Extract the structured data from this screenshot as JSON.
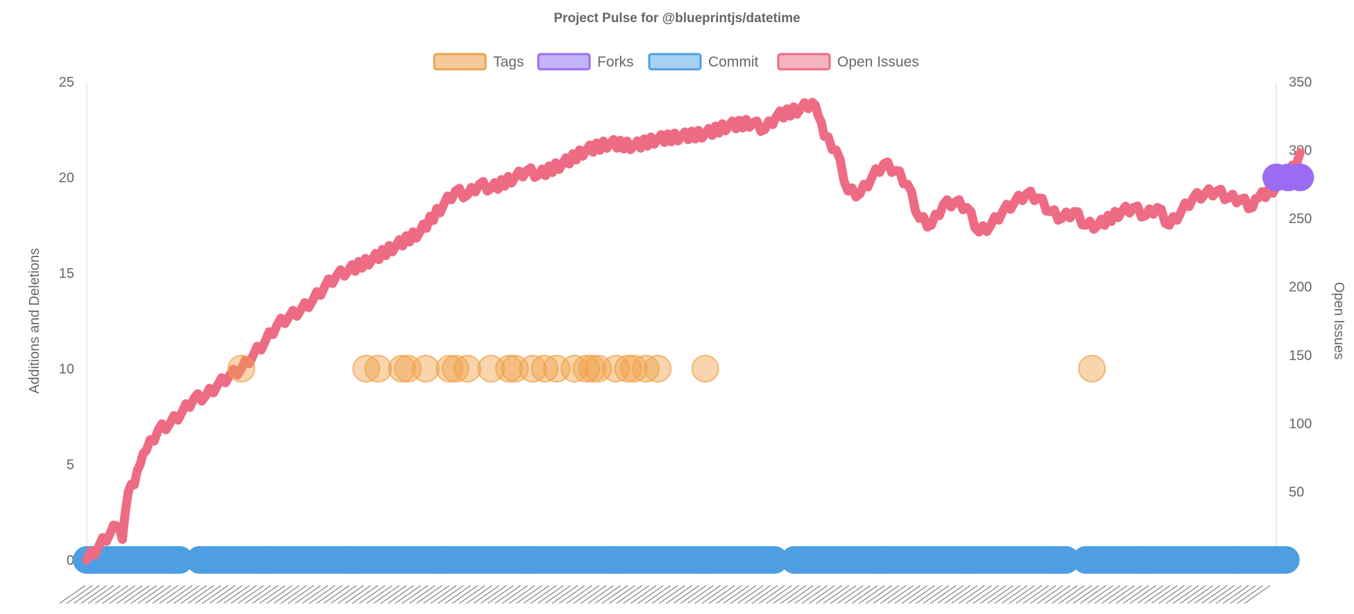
{
  "chart_data": {
    "type": "line",
    "title": "Project Pulse for @blueprintjs/datetime",
    "legend": {
      "position": "top",
      "items": [
        {
          "name": "Tags",
          "fill": "#f6c99b",
          "stroke": "#f0a24a"
        },
        {
          "name": "Forks",
          "fill": "#c3b3f7",
          "stroke": "#9b6cf3"
        },
        {
          "name": "Commit",
          "fill": "#a7d2f3",
          "stroke": "#4f9ee3"
        },
        {
          "name": "Open Issues",
          "fill": "#f4b4c1",
          "stroke": "#ee6b84"
        }
      ]
    },
    "y_left": {
      "label": "Additions and Deletions",
      "min": 0,
      "max": 25,
      "ticks": [
        0,
        5,
        10,
        15,
        20,
        25
      ]
    },
    "y_right": {
      "label": "Open Issues",
      "min": 0,
      "max": 350,
      "ticks": [
        0,
        50,
        100,
        150,
        200,
        250,
        300,
        350
      ]
    },
    "grid": "vertical axis lines only",
    "x": {
      "label": "",
      "index_min": 0,
      "index_max": 1000,
      "tick_labels_legible": false
    },
    "series": [
      {
        "name": "Open Issues",
        "axis": "right",
        "color": "#ee6b84",
        "points": [
          [
            0,
            0
          ],
          [
            10,
            10
          ],
          [
            20,
            20
          ],
          [
            25,
            25
          ],
          [
            30,
            15
          ],
          [
            35,
            50
          ],
          [
            40,
            55
          ],
          [
            45,
            70
          ],
          [
            50,
            80
          ],
          [
            60,
            95
          ],
          [
            70,
            100
          ],
          [
            80,
            108
          ],
          [
            90,
            118
          ],
          [
            100,
            120
          ],
          [
            110,
            128
          ],
          [
            120,
            135
          ],
          [
            130,
            140
          ],
          [
            140,
            150
          ],
          [
            150,
            160
          ],
          [
            160,
            172
          ],
          [
            170,
            178
          ],
          [
            180,
            183
          ],
          [
            190,
            190
          ],
          [
            200,
            200
          ],
          [
            210,
            208
          ],
          [
            220,
            212
          ],
          [
            240,
            220
          ],
          [
            260,
            230
          ],
          [
            280,
            240
          ],
          [
            300,
            260
          ],
          [
            310,
            270
          ],
          [
            320,
            267
          ],
          [
            330,
            275
          ],
          [
            340,
            272
          ],
          [
            360,
            280
          ],
          [
            370,
            285
          ],
          [
            380,
            282
          ],
          [
            400,
            290
          ],
          [
            420,
            300
          ],
          [
            440,
            305
          ],
          [
            460,
            303
          ],
          [
            480,
            308
          ],
          [
            500,
            310
          ],
          [
            520,
            312
          ],
          [
            540,
            318
          ],
          [
            560,
            320
          ],
          [
            570,
            315
          ],
          [
            580,
            325
          ],
          [
            600,
            330
          ],
          [
            610,
            335
          ],
          [
            615,
            325
          ],
          [
            620,
            310
          ],
          [
            630,
            300
          ],
          [
            640,
            270
          ],
          [
            650,
            268
          ],
          [
            660,
            280
          ],
          [
            670,
            290
          ],
          [
            680,
            285
          ],
          [
            690,
            275
          ],
          [
            700,
            250
          ],
          [
            710,
            245
          ],
          [
            720,
            260
          ],
          [
            730,
            262
          ],
          [
            740,
            258
          ],
          [
            750,
            240
          ],
          [
            760,
            245
          ],
          [
            770,
            255
          ],
          [
            780,
            262
          ],
          [
            790,
            268
          ],
          [
            800,
            265
          ],
          [
            810,
            255
          ],
          [
            820,
            250
          ],
          [
            830,
            255
          ],
          [
            840,
            245
          ],
          [
            850,
            245
          ],
          [
            870,
            255
          ],
          [
            880,
            258
          ],
          [
            890,
            252
          ],
          [
            900,
            258
          ],
          [
            910,
            245
          ],
          [
            920,
            255
          ],
          [
            930,
            265
          ],
          [
            940,
            268
          ],
          [
            950,
            270
          ],
          [
            960,
            265
          ],
          [
            970,
            264
          ],
          [
            980,
            258
          ],
          [
            985,
            265
          ],
          [
            1000,
            273
          ],
          [
            1010,
            280
          ],
          [
            1020,
            298
          ]
        ]
      },
      {
        "name": "Tags",
        "axis": "left",
        "color": "#f0a24a",
        "x": [
          130,
          235,
          245,
          265,
          270,
          285,
          305,
          310,
          320,
          340,
          355,
          360,
          375,
          385,
          395,
          410,
          420,
          425,
          430,
          445,
          455,
          460,
          470,
          480,
          520,
          845
        ],
        "y_constant": 10
      },
      {
        "name": "Commit",
        "axis": "left",
        "color": "#4f9ee3",
        "y_constant": 0,
        "x_ranges": [
          [
            0,
            80
          ],
          [
            95,
            580
          ],
          [
            595,
            825
          ],
          [
            840,
            1010
          ]
        ]
      },
      {
        "name": "Forks",
        "axis": "right",
        "color": "#9b6cf3",
        "x": [
          1000,
          1010,
          1020
        ],
        "y_constant": 280
      }
    ]
  }
}
